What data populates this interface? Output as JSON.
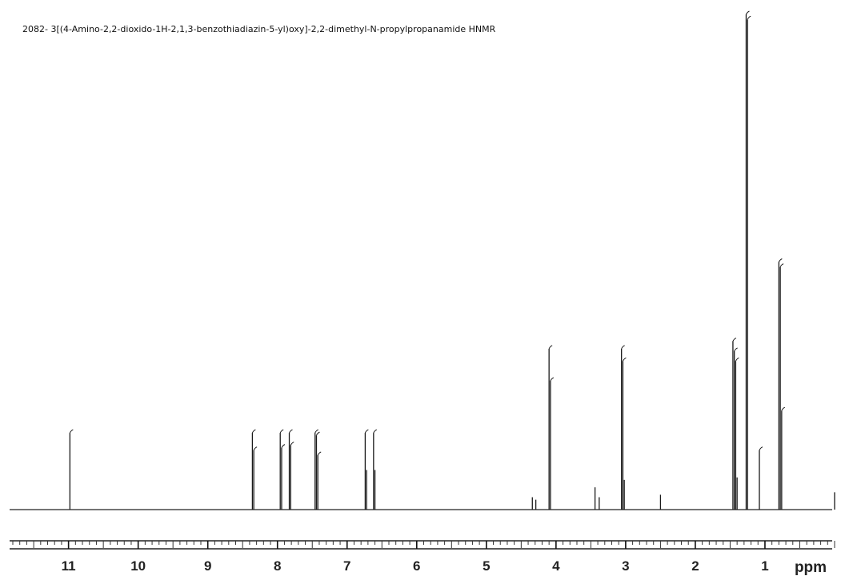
{
  "title": "2082- 3[(4-Amino-2,2-dioxido-1H-2,1,3-benzothiadiazin-5-yl)oxy]-2,2-dimethyl-N-propylpropanamide HNMR",
  "chart_data": {
    "type": "line",
    "title": "2082- 3[(4-Amino-2,2-dioxido-1H-2,1,3-benzothiadiazin-5-yl)oxy]-2,2-dimethyl-N-propylpropanamide HNMR",
    "xlabel": "ppm",
    "ylabel": "",
    "x_reversed": true,
    "xlim": [
      11.8,
      0.0
    ],
    "ylim": [
      0,
      100
    ],
    "x_ticks": [
      "11",
      "10",
      "9",
      "8",
      "7",
      "6",
      "5",
      "4",
      "3",
      "2",
      "1"
    ],
    "grid": false,
    "series": [
      {
        "peaks": [
          {
            "x": 10.98,
            "height": 15.5
          },
          {
            "x": 8.36,
            "height": 15.5
          },
          {
            "x": 8.34,
            "height": 12.0
          },
          {
            "x": 7.96,
            "height": 15.5
          },
          {
            "x": 7.94,
            "height": 12.5
          },
          {
            "x": 7.83,
            "height": 15.5
          },
          {
            "x": 7.81,
            "height": 13.0
          },
          {
            "x": 7.46,
            "height": 15.5
          },
          {
            "x": 7.44,
            "height": 15.0
          },
          {
            "x": 7.42,
            "height": 11.0
          },
          {
            "x": 6.74,
            "height": 15.5
          },
          {
            "x": 6.72,
            "height": 8.0
          },
          {
            "x": 6.62,
            "height": 15.5
          },
          {
            "x": 6.6,
            "height": 8.0
          },
          {
            "x": 4.34,
            "height": 2.5
          },
          {
            "x": 4.29,
            "height": 2.0
          },
          {
            "x": 4.1,
            "height": 32.5
          },
          {
            "x": 4.08,
            "height": 26.0
          },
          {
            "x": 3.44,
            "height": 4.5
          },
          {
            "x": 3.38,
            "height": 2.5
          },
          {
            "x": 3.06,
            "height": 32.5
          },
          {
            "x": 3.04,
            "height": 30.0
          },
          {
            "x": 3.02,
            "height": 6.0
          },
          {
            "x": 2.5,
            "height": 3.0
          },
          {
            "x": 1.46,
            "height": 34.0
          },
          {
            "x": 1.44,
            "height": 32.0
          },
          {
            "x": 1.42,
            "height": 30.0
          },
          {
            "x": 1.4,
            "height": 6.5
          },
          {
            "x": 1.27,
            "height": 100.0
          },
          {
            "x": 1.25,
            "height": 99.0
          },
          {
            "x": 1.08,
            "height": 12.0
          },
          {
            "x": 0.8,
            "height": 50.0
          },
          {
            "x": 0.78,
            "height": 49.0
          },
          {
            "x": 0.76,
            "height": 20.0
          },
          {
            "x": 0.0,
            "height": 3.5
          }
        ]
      }
    ]
  }
}
